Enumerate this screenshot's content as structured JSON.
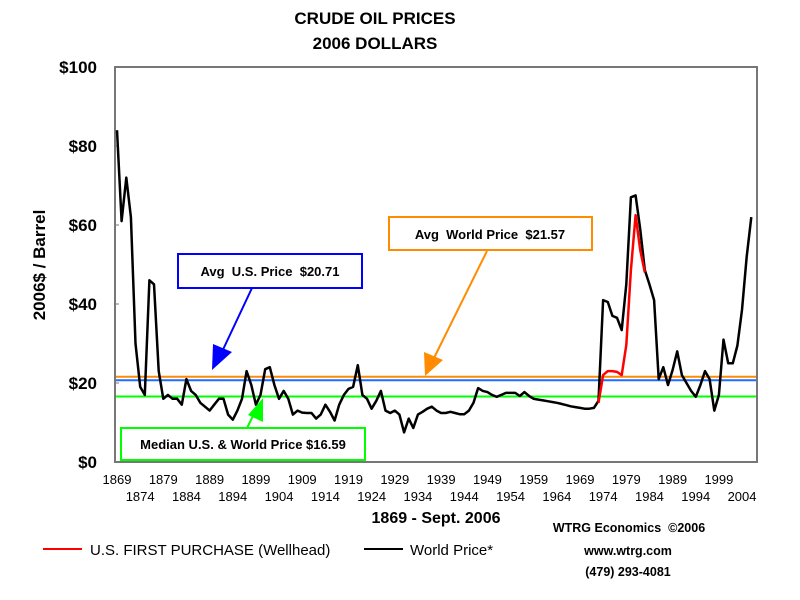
{
  "chart_data": {
    "type": "line",
    "title": "CRUDE OIL PRICES",
    "subtitle": "2006 DOLLARS",
    "xlabel": "1869 - Sept. 2006",
    "ylabel": "2006$ / Barrel",
    "xlim": [
      1869,
      2007
    ],
    "ylim": [
      0,
      100
    ],
    "yticks": [
      "$0",
      "$20",
      "$40",
      "$60",
      "$80",
      "$100"
    ],
    "ytick_values": [
      0,
      20,
      40,
      60,
      80,
      100
    ],
    "xticks_row1": [
      "1869",
      "1879",
      "1889",
      "1899",
      "1909",
      "1919",
      "1929",
      "1939",
      "1949",
      "1959",
      "1969",
      "1979",
      "1989",
      "1999"
    ],
    "xticks_row2": [
      "1874",
      "1884",
      "1894",
      "1904",
      "1914",
      "1924",
      "1934",
      "1944",
      "1954",
      "1964",
      "1974",
      "1984",
      "1994",
      "2004"
    ],
    "series": [
      {
        "name": "World Price*",
        "color": "#000000",
        "x": [
          1869,
          1870,
          1871,
          1872,
          1873,
          1874,
          1875,
          1876,
          1877,
          1878,
          1879,
          1880,
          1881,
          1882,
          1883,
          1884,
          1885,
          1886,
          1887,
          1888,
          1889,
          1890,
          1891,
          1892,
          1893,
          1894,
          1895,
          1896,
          1897,
          1898,
          1899,
          1900,
          1901,
          1902,
          1903,
          1904,
          1905,
          1906,
          1907,
          1908,
          1909,
          1910,
          1911,
          1912,
          1913,
          1914,
          1915,
          1916,
          1917,
          1918,
          1919,
          1920,
          1921,
          1922,
          1923,
          1924,
          1925,
          1926,
          1927,
          1928,
          1929,
          1930,
          1931,
          1932,
          1933,
          1934,
          1935,
          1936,
          1937,
          1938,
          1939,
          1940,
          1941,
          1942,
          1943,
          1944,
          1945,
          1946,
          1947,
          1948,
          1949,
          1950,
          1951,
          1952,
          1953,
          1954,
          1955,
          1956,
          1957,
          1958,
          1959,
          1960,
          1961,
          1962,
          1963,
          1964,
          1965,
          1966,
          1967,
          1968,
          1969,
          1970,
          1971,
          1972,
          1973,
          1974,
          1975,
          1976,
          1977,
          1978,
          1979,
          1980,
          1981,
          1982,
          1983,
          1984,
          1985,
          1986,
          1987,
          1988,
          1989,
          1990,
          1991,
          1992,
          1993,
          1994,
          1995,
          1996,
          1997,
          1998,
          1999,
          2000,
          2001,
          2002,
          2003,
          2004,
          2005,
          2006
        ],
        "values": [
          84,
          61,
          72,
          62,
          30,
          19,
          17,
          46,
          45,
          23,
          16,
          17,
          16,
          16,
          14.5,
          21,
          18,
          17,
          15,
          14,
          13,
          14.5,
          16,
          16,
          12,
          10.7,
          13,
          16,
          23,
          19.5,
          14.5,
          17,
          23.5,
          24,
          19.5,
          16,
          18,
          16,
          12,
          13,
          12.5,
          12.4,
          12.4,
          11,
          12,
          14.5,
          12.7,
          10.5,
          14.5,
          17,
          18.5,
          19,
          24.5,
          17,
          16,
          13.5,
          15.5,
          18,
          13,
          12.4,
          13,
          12,
          7.5,
          11,
          8.6,
          12,
          12.7,
          13.5,
          14,
          13,
          12.4,
          12.4,
          12.7,
          12.4,
          12.1,
          12.1,
          13,
          15,
          18.7,
          18,
          17.7,
          17,
          16.5,
          17,
          17.5,
          17.5,
          17.5,
          16.7,
          17.7,
          16.7,
          16,
          15.8,
          15.6,
          15.4,
          15.2,
          15,
          14.7,
          14.4,
          14.1,
          13.9,
          13.7,
          13.5,
          13.5,
          13.7,
          15.5,
          41,
          40.5,
          37,
          36.5,
          33.4,
          45,
          67,
          67.5,
          59,
          48.6,
          45,
          41,
          21,
          24,
          19.5,
          23.3,
          28,
          22,
          20,
          18,
          16.5,
          19.5,
          23,
          21,
          13,
          17,
          31,
          25,
          25,
          29.5,
          38.5,
          52,
          62
        ]
      },
      {
        "name": "U.S. FIRST PURCHASE (Wellhead)",
        "color": "#ff0000",
        "x": [
          1973,
          1974,
          1975,
          1976,
          1977,
          1978,
          1979,
          1980,
          1981,
          1982,
          1983
        ],
        "values": [
          15,
          22,
          23,
          23,
          22.8,
          22,
          29.6,
          48.6,
          62.5,
          53.7,
          48
        ]
      }
    ],
    "reference_lines": [
      {
        "name": "Avg World Price",
        "label": "Avg  World Price  $21.57",
        "value": 21.57,
        "color": "#ff8c00"
      },
      {
        "name": "Avg U.S. Price",
        "label": "Avg  U.S. Price  $20.71",
        "value": 20.71,
        "color": "#1e6fff"
      },
      {
        "name": "Median U.S. & World Price",
        "label": "Median U.S. & World Price $16.59",
        "value": 16.59,
        "color": "#00ff00"
      }
    ],
    "legend": {
      "placement": "bottom",
      "items": [
        "U.S. FIRST PURCHASE (Wellhead)",
        "World Price*"
      ]
    },
    "grid": false
  },
  "credits": {
    "line1": "WTRG Economics  ©2006",
    "line2": "www.wtrg.com",
    "line3": "(479) 293-4081"
  }
}
